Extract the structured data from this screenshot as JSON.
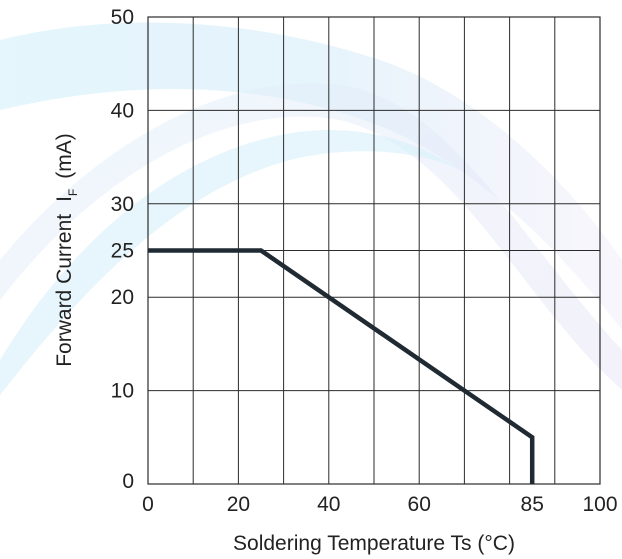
{
  "chart_data": {
    "type": "line",
    "xlabel": "Soldering Temperature Ts (°C)",
    "ylabel_main": "Forward Current",
    "ylabel_symbol": "I",
    "ylabel_subscript": "F",
    "ylabel_unit": "(mA)",
    "xlim": [
      0,
      100
    ],
    "ylim": [
      0,
      50
    ],
    "grid": true,
    "x_grid_step": 10,
    "y_grid_lines": [
      10,
      20,
      25,
      30,
      40,
      50
    ],
    "x_ticks": [
      {
        "value": 0,
        "label": "0"
      },
      {
        "value": 20,
        "label": "20"
      },
      {
        "value": 40,
        "label": "40"
      },
      {
        "value": 60,
        "label": "60"
      },
      {
        "value": 85,
        "label": "85"
      },
      {
        "value": 100,
        "label": "100"
      }
    ],
    "y_ticks": [
      {
        "value": 0,
        "label": "0"
      },
      {
        "value": 10,
        "label": "10"
      },
      {
        "value": 20,
        "label": "20"
      },
      {
        "value": 25,
        "label": "25"
      },
      {
        "value": 30,
        "label": "30"
      },
      {
        "value": 40,
        "label": "40"
      },
      {
        "value": 50,
        "label": "50"
      }
    ],
    "series": [
      {
        "color": "#1f2a33",
        "x": [
          0,
          25,
          85,
          85
        ],
        "y": [
          25,
          25,
          5,
          0
        ]
      }
    ]
  }
}
